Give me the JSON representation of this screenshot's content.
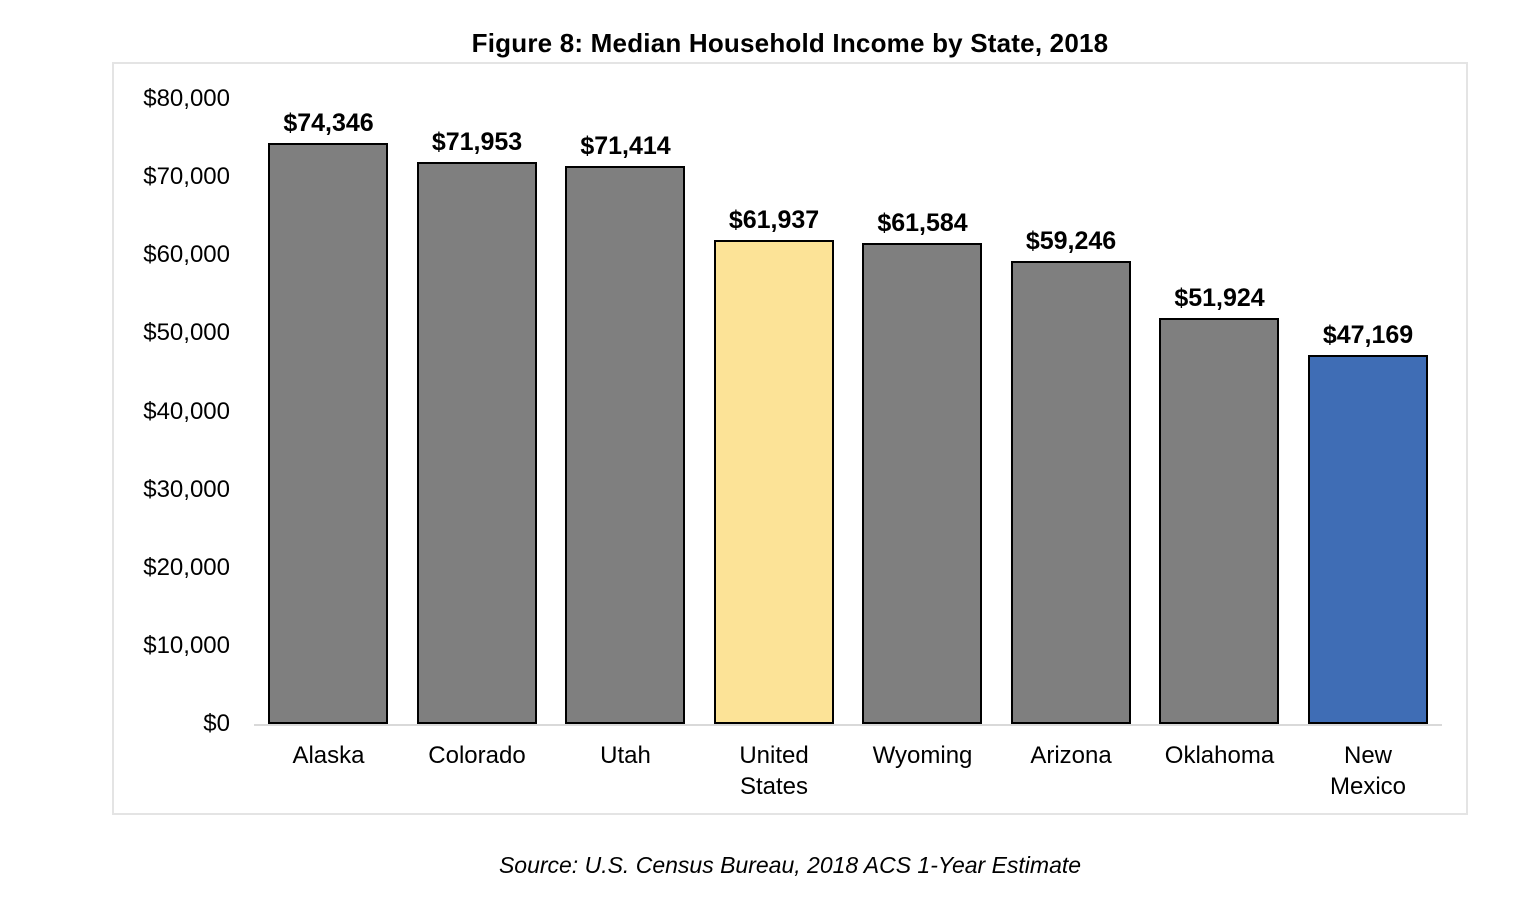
{
  "title": "Figure 8: Median Household Income by State, 2018",
  "source_note": "Source: U.S. Census Bureau, 2018 ACS 1-Year Estimate",
  "chart_data": {
    "type": "bar",
    "title": "Figure 8: Median Household Income by State, 2018",
    "xlabel": "",
    "ylabel": "",
    "categories": [
      "Alaska",
      "Colorado",
      "Utah",
      "United States",
      "Wyoming",
      "Arizona",
      "Oklahoma",
      "New Mexico"
    ],
    "values": [
      74346,
      71953,
      71414,
      61937,
      61584,
      59246,
      51924,
      47169
    ],
    "value_labels": [
      "$74,346",
      "$71,953",
      "$71,414",
      "$61,937",
      "$61,584",
      "$59,246",
      "$51,924",
      "$47,169"
    ],
    "bar_colors": [
      "#7f7f7f",
      "#7f7f7f",
      "#7f7f7f",
      "#fce397",
      "#7f7f7f",
      "#7f7f7f",
      "#7f7f7f",
      "#3f6db5"
    ],
    "bar_border_color": "#000000",
    "highlight_us_color": "#fce397",
    "highlight_nm_color": "#3f6db5",
    "default_bar_color": "#7f7f7f",
    "ylim": [
      0,
      80000
    ],
    "ytick_step": 10000,
    "yticks_top_down": [
      "$80,000",
      "$70,000",
      "$60,000",
      "$50,000",
      "$40,000",
      "$30,000",
      "$20,000",
      "$10,000",
      "$0"
    ],
    "grid": false,
    "legend": false,
    "source": "Source: U.S. Census Bureau, 2018 ACS 1-Year Estimate"
  }
}
